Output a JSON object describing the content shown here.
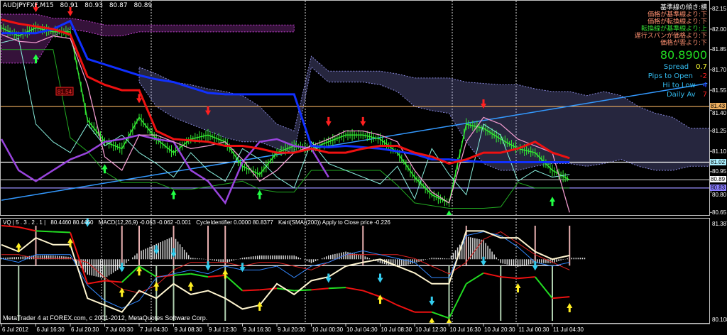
{
  "header": {
    "symbol": "AUDJPYFXF,M15",
    "open": "80.91",
    "high": "80.93",
    "low": "80.87",
    "close": "80.89"
  },
  "info_panel": {
    "lines": [
      {
        "text": "基準線の傾き:横",
        "color": "#ffffff"
      },
      {
        "text": "価格が基準線より:下",
        "color": "#ff9070"
      },
      {
        "text": "価格が転換線より:下",
        "color": "#ff9070"
      },
      {
        "text": "転換線が基準線より:上",
        "color": "#33dd33"
      },
      {
        "text": "遅行スパンが価格より:下",
        "color": "#ff9070"
      },
      {
        "text": "価格が雲より:下",
        "color": "#ff9070"
      }
    ],
    "price": "80.8900",
    "stats": [
      {
        "label": "Spread",
        "value": "0.7",
        "color": "#ffff33"
      },
      {
        "label": "Pips to Open",
        "value": "-2",
        "color": "#ff2020"
      },
      {
        "label": "Hi to Low",
        "value": "4",
        "color": "#2040ff"
      },
      {
        "label": "Daily Av",
        "value": "7",
        "color": "#ff2020"
      }
    ]
  },
  "subwindow_header": [
    "VQ | 5 . 3 . 2 . 1 |",
    "80.4460 80.4460",
    "MACD(12,26,9) -0.063 -0.062 -0.001",
    "CycleIdentifier 0.0000 80.8377",
    "Kairi(SMA((200)) Apply to Close price -0.226"
  ],
  "footer": "MetaTrader 4 at FOREX.com, c 2001-2012, MetaQuotes Software Corp.",
  "chart_data": [
    {
      "type": "line",
      "title": "AUDJPYFXF,M15",
      "ylim": [
        80.58,
        82.22
      ],
      "y_ticks": [
        "82.15",
        "82.00",
        "81.85",
        "81.70",
        "81.55",
        "81.40",
        "81.25",
        "81.10",
        "80.95",
        "80.80",
        "80.65"
      ],
      "x_ticks": [
        "6 Jul 2012",
        "6 Jul 16:30",
        "6 Jul 20:30",
        "7 Jul 00:30",
        "7 Jul 04:30",
        "9 Jul 08:30",
        "9 Jul 12:30",
        "9 Jul 16:30",
        "9 Jul 20:30",
        "10 Jul 00:30",
        "10 Jul 04:30",
        "10 Jul 08:30",
        "10 Jul 12:30",
        "10 Jul 16:30",
        "10 Jul 20:30",
        "11 Jul 00:30",
        "11 Jul 04:30"
      ],
      "grid": false,
      "times": [
        "6 Jul 12:30",
        "6 Jul 14:30",
        "6 Jul 16:30",
        "6 Jul 18:30",
        "6 Jul 20:30",
        "6 Jul 22:30",
        "7 Jul 00:30",
        "7 Jul 02:30",
        "7 Jul 04:30",
        "7 Jul 06:30",
        "9 Jul 08:30",
        "9 Jul 10:30",
        "9 Jul 12:30",
        "9 Jul 14:30",
        "9 Jul 16:30",
        "9 Jul 18:30",
        "9 Jul 20:30",
        "9 Jul 22:30",
        "10 Jul 00:30",
        "10 Jul 02:30",
        "10 Jul 04:30",
        "10 Jul 06:30",
        "10 Jul 08:30",
        "10 Jul 10:30",
        "10 Jul 12:30",
        "10 Jul 14:30",
        "10 Jul 16:30",
        "10 Jul 18:30",
        "10 Jul 20:30",
        "10 Jul 22:30",
        "11 Jul 00:30",
        "11 Jul 02:30",
        "11 Jul 04:30",
        "11 Jul 06:30",
        "11 Jul 08:30",
        "11 Jul 10:30",
        "11 Jul 12:30",
        "11 Jul 14:30",
        "11 Jul 16:30",
        "11 Jul 18:30",
        "11 Jul 20:30",
        "11 Jul 22:30",
        "12 Jul 00:30"
      ],
      "clouds": [
        {
          "color": "#c040d0",
          "upper": [
            82.11,
            82.11,
            82.11,
            82.08,
            82.08,
            82.06,
            82.03,
            82.03,
            82.03,
            82.03,
            82.03,
            82.03,
            82.03,
            82.03,
            82.03,
            82.03,
            82.03,
            82.03
          ],
          "lower": [
            81.75,
            81.75,
            81.75,
            81.95,
            82.0,
            81.98,
            81.95,
            81.95,
            81.98,
            81.98,
            81.98,
            81.98,
            81.98,
            81.98,
            81.98,
            81.98,
            81.98,
            81.98
          ]
        },
        {
          "color": "#8a8ae0",
          "upper": [
            null,
            null,
            null,
            null,
            null,
            null,
            null,
            null,
            81.72,
            81.67,
            81.61,
            81.59,
            81.56,
            81.54,
            81.51,
            81.43,
            81.3,
            81.25,
            81.8,
            81.69,
            81.69,
            81.69,
            81.69,
            81.67,
            81.64,
            81.64,
            81.64,
            81.61,
            81.6,
            81.59,
            81.59,
            81.56,
            81.54,
            81.54,
            81.51,
            81.54,
            81.51,
            81.43,
            81.38,
            81.35,
            81.27,
            81.27,
            81.27
          ],
          "lower": [
            null,
            null,
            null,
            null,
            null,
            null,
            null,
            null,
            81.61,
            81.43,
            81.35,
            81.3,
            81.25,
            81.2,
            81.17,
            81.17,
            81.12,
            81.09,
            81.72,
            81.61,
            81.61,
            81.61,
            81.59,
            81.54,
            81.43,
            81.4,
            81.38,
            81.17,
            81.01,
            80.96,
            80.96,
            80.99,
            81.01,
            81.01,
            80.99,
            81.01,
            81.04,
            80.99,
            80.96,
            80.96,
            80.99,
            80.99,
            80.99
          ]
        }
      ],
      "series": [
        {
          "key": "price",
          "color": "#33ee33",
          "width": 1.4,
          "values": [
            82.01,
            81.95,
            82.01,
            81.98,
            81.98,
            81.33,
            81.17,
            81.12,
            81.35,
            81.19,
            81.09,
            81.19,
            81.22,
            81.17,
            80.99,
            80.93,
            81.09,
            81.14,
            81.12,
            81.17,
            81.22,
            81.22,
            81.19,
            81.09,
            80.91,
            80.78,
            80.72,
            81.3,
            81.27,
            81.19,
            81.12,
            81.09,
            80.96,
            80.89
          ]
        },
        {
          "key": "green-line",
          "color": "#22aa22",
          "width": 1,
          "values": [
            81.85,
            81.85,
            81.85,
            81.85,
            81.2,
            81.1,
            80.95,
            80.87,
            80.87,
            80.87,
            80.82,
            80.82,
            80.84,
            80.86,
            80.88,
            80.82,
            80.8,
            80.8,
            80.96,
            80.96,
            80.96,
            80.96,
            80.96,
            80.85,
            80.72,
            80.7,
            80.68,
            80.68,
            80.68,
            80.69,
            80.87,
            80.83,
            80.83,
            80.83
          ]
        },
        {
          "key": "aqua-line",
          "color": "#88eedd",
          "width": 1,
          "values": [
            81.9,
            81.93,
            81.3,
            81.17,
            81.09,
            81.3,
            81.14,
            81.22,
            81.09,
            81.01,
            80.91,
            81.09,
            80.96,
            80.88,
            81.12,
            81.04,
            80.91,
            80.83,
            81.17,
            81.01,
            80.96,
            80.91,
            80.86,
            80.99,
            80.75,
            81.12,
            80.93,
            80.78,
            81.3,
            81.22,
            80.88,
            80.96,
            80.91,
            80.93
          ]
        },
        {
          "key": "purple-line",
          "color": "#9944dd",
          "width": 2.5,
          "values": [
            81.19,
            80.96,
            80.88,
            80.96,
            81.04,
            81.09,
            81.17,
            81.19,
            81.22,
            81.19,
            81.17,
            80.96,
            80.88,
            80.72,
            81.02,
            81.17,
            81.19,
            81.14,
            81.12,
            80.91
          ]
        },
        {
          "key": "pink-line",
          "color": "#ee99cc",
          "width": 1.3,
          "values": [
            81.96,
            81.91,
            81.9,
            81.95,
            81.93,
            81.59,
            81.06,
            80.96,
            81.22,
            81.22,
            81.17,
            81.12,
            81.14,
            81.17,
            81.04,
            80.88,
            80.96,
            81.09,
            81.14,
            81.19,
            81.25,
            81.25,
            81.22,
            81.17,
            80.96,
            80.8,
            80.72,
            81.17,
            81.35,
            81.3,
            81.19,
            81.14,
            81.09,
            80.65
          ]
        },
        {
          "key": "kijun",
          "color": "#1030ff",
          "width": 3,
          "values": [
            81.97,
            81.97,
            81.97,
            82.0,
            82.06,
            81.78,
            81.74,
            81.7,
            81.66,
            81.63,
            81.61,
            81.57,
            81.53,
            81.52,
            81.52,
            81.52,
            81.52,
            81.52,
            81.14,
            81.13,
            81.14,
            81.13,
            81.12,
            81.1,
            81.08,
            81.04,
            81.04,
            81.03,
            81.02,
            81.02,
            81.02,
            81.02,
            81.02,
            81.02
          ]
        },
        {
          "key": "tenkan",
          "color": "#ee1111",
          "width": 3,
          "values": [
            82.07,
            82.04,
            82.02,
            82.0,
            81.96,
            81.65,
            81.59,
            81.55,
            81.55,
            81.25,
            81.19,
            81.18,
            81.17,
            81.14,
            81.14,
            81.12,
            81.09,
            81.09,
            81.12,
            81.09,
            81.09,
            81.12,
            81.14,
            81.14,
            81.09,
            81.06,
            81.01,
            81.04,
            81.09,
            81.09,
            81.12,
            81.17,
            81.09,
            81.05
          ]
        }
      ],
      "trendline": {
        "color": "#3399ff",
        "from": [
          "6 Jul 12:30",
          80.74
        ],
        "to": [
          "11 Jul 22:30",
          81.6
        ]
      },
      "horizontal_lines": [
        {
          "value": "81.43",
          "color": "#f0b060"
        },
        {
          "value": "81.02",
          "color": "#ffffff",
          "badge_bg": "#aaf0ff"
        },
        {
          "value": "80.89",
          "color": "#b0b0b0",
          "badge_bg": "#ffffff"
        },
        {
          "value": "80.83",
          "color": "#9a90ff",
          "badge_bg": "#8a7cff"
        }
      ],
      "sell_arrows": [
        [
          "6 Jul 16:30",
          82.14
        ],
        [
          "6 Jul 20:30",
          82.11
        ],
        [
          "7 Jul 04:30",
          81.47
        ],
        [
          "9 Jul 12:30",
          81.38
        ],
        [
          "10 Jul 02:30",
          81.3
        ],
        [
          "10 Jul 06:30",
          81.3
        ],
        [
          "10 Jul 20:30",
          81.43
        ]
      ],
      "buy_arrows": [
        [
          "6 Jul 16:30",
          81.8
        ],
        [
          "7 Jul 00:30",
          80.99
        ],
        [
          "9 Jul 08:30",
          80.8
        ],
        [
          "9 Jul 18:30",
          80.8
        ],
        [
          "10 Jul 16:30",
          80.65
        ],
        [
          "11 Jul 04:30",
          80.75
        ]
      ],
      "price_label": {
        "text": "81.54",
        "time": "6 Jul 20:30",
        "value": 81.54
      }
    },
    {
      "type": "line",
      "title": "VQ",
      "ylim": [
        80.108,
        81.3877
      ],
      "y_ticks": [
        "81.3877",
        "80.108"
      ],
      "series": [
        {
          "key": "vq",
          "color": "#fff5d0",
          "width": 2,
          "values": [
            81.13,
            81.04,
            81.22,
            81.13,
            81.13,
            80.43,
            80.34,
            80.25,
            80.53,
            80.43,
            80.62,
            80.48,
            80.53,
            80.43,
            80.29,
            80.34,
            80.62,
            80.48,
            80.66,
            80.71,
            80.85,
            80.9,
            80.94,
            80.85,
            80.76,
            80.62,
            80.62,
            81.31,
            81.31,
            81.22,
            81.22,
            81.04,
            80.94,
            80.99
          ]
        },
        {
          "key": "blue",
          "color": "#3388ff",
          "width": 1,
          "values": [
            80.95,
            80.9,
            81.0,
            81.0,
            81.0,
            80.6,
            80.4,
            80.3,
            80.4,
            80.7,
            80.75,
            80.8,
            80.75,
            80.85,
            80.8,
            80.8,
            80.85,
            80.7,
            80.85,
            80.9,
            81.0,
            81.05,
            81.0,
            80.95,
            80.9,
            80.7,
            80.7,
            81.25,
            81.3,
            81.25,
            81.1,
            80.9,
            80.85,
            80.9
          ]
        },
        {
          "key": "red",
          "color": "#dd2222",
          "width": 1,
          "values": [
            81.0,
            81.0,
            80.95,
            80.95,
            80.95,
            80.9,
            80.7,
            80.55,
            80.5,
            80.6,
            80.8,
            80.9,
            80.9,
            80.9,
            80.85,
            80.9,
            80.9,
            80.85,
            80.8,
            80.9,
            81.0,
            81.0,
            81.0,
            81.0,
            80.95,
            80.85,
            80.75,
            80.9,
            81.2,
            81.3,
            81.15,
            81.0,
            80.9,
            80.8
          ]
        }
      ],
      "histogram": {
        "baseline": 80.94,
        "values": [
          0.02,
          0.03,
          0.05,
          0.05,
          0.03,
          -0.2,
          -0.25,
          -0.1,
          0.1,
          0.2,
          0.3,
          0.02,
          0.0,
          -0.05,
          0.02,
          0.05,
          0.05,
          0.05,
          -0.05,
          0.05,
          0.1,
          0.05,
          -0.05,
          -0.1,
          -0.05,
          0.02,
          0.01,
          0.3,
          0.25,
          -0.05,
          -0.1,
          -0.05,
          -0.05,
          0.02
        ]
      },
      "step_line": {
        "values": [
          81.38,
          81.36,
          81.31,
          81.3,
          81.29,
          80.62,
          80.66,
          80.64,
          80.85,
          80.71,
          80.73,
          80.75,
          80.71,
          80.73,
          80.53,
          80.54,
          80.56,
          80.53,
          80.54,
          80.56,
          80.57,
          80.53,
          80.45,
          80.34,
          80.25,
          80.25,
          80.17,
          80.62,
          80.76,
          80.71,
          80.69,
          80.71,
          80.43,
          80.45
        ],
        "states": [
          "down",
          "down",
          "up",
          "up",
          "down",
          "down",
          "down",
          "up",
          "up",
          "down",
          "up",
          "up",
          "down",
          "up",
          "down",
          "down",
          "up",
          "up",
          "down",
          "up",
          "down",
          "down",
          "down",
          "down",
          "down",
          "up",
          "up",
          "up",
          "down",
          "down",
          "down",
          "up",
          "down",
          "up"
        ],
        "up_color": "#22dd22",
        "down_color": "#ee1111"
      },
      "cycle_baseline": 80.94,
      "cycle_up": [
        "6 Jul 16:30",
        "7 Jul 02:30",
        "7 Jul 04:30",
        "9 Jul 08:30",
        "9 Jul 12:30",
        "9 Jul 14:30",
        "10 Jul 06:30",
        "10 Jul 18:30",
        "11 Jul 02:30",
        "11 Jul 06:30"
      ],
      "cycle_down": [
        "6 Jul 14:30",
        "7 Jul 00:30",
        "7 Jul 06:30",
        "9 Jul 08:30",
        "9 Jul 14:30",
        "10 Jul 16:30",
        "10 Jul 22:30",
        "11 Jul 04:30"
      ],
      "yellow_arrows": [
        [
          "6 Jul 14:30",
          81.13
        ],
        [
          "6 Jul 20:30",
          81.19
        ],
        [
          "7 Jul 02:30",
          80.54
        ],
        [
          "7 Jul 04:30",
          80.82
        ],
        [
          "7 Jul 06:30",
          80.62
        ],
        [
          "9 Jul 10:30",
          80.62
        ],
        [
          "9 Jul 14:30",
          80.78
        ],
        [
          "9 Jul 18:30",
          80.36
        ],
        [
          "10 Jul 08:30",
          80.45
        ],
        [
          "10 Jul 14:30",
          80.15
        ],
        [
          "10 Jul 16:30",
          80.14
        ],
        [
          "11 Jul 00:30",
          80.6
        ],
        [
          "11 Jul 06:30",
          80.34
        ]
      ],
      "cyan_arrows": [
        [
          "6 Jul 22:30",
          81.39
        ],
        [
          "7 Jul 02:30",
          80.8
        ],
        [
          "7 Jul 06:30",
          81.03
        ],
        [
          "9 Jul 08:30",
          80.99
        ],
        [
          "9 Jul 12:30",
          80.82
        ],
        [
          "9 Jul 16:30",
          80.8
        ],
        [
          "10 Jul 02:30",
          80.66
        ],
        [
          "10 Jul 08:30",
          80.66
        ],
        [
          "10 Jul 14:30",
          80.36
        ],
        [
          "10 Jul 20:30",
          80.88
        ],
        [
          "11 Jul 02:30",
          80.82
        ]
      ]
    }
  ]
}
